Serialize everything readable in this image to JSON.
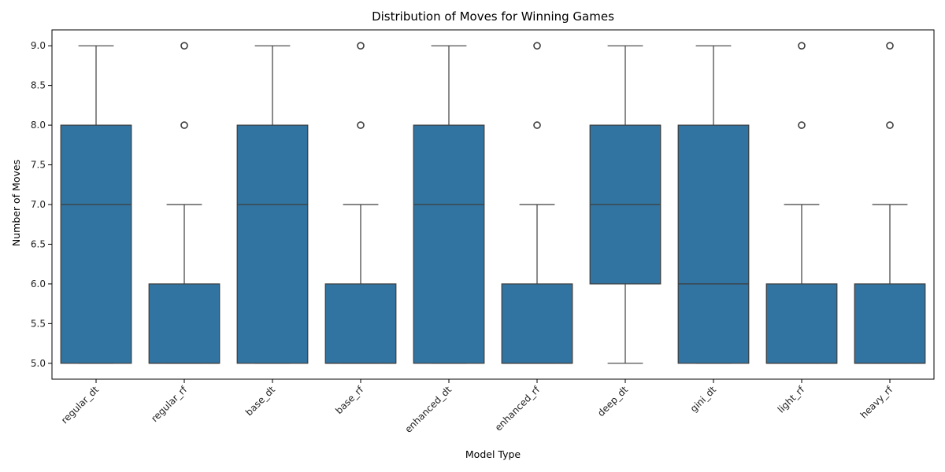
{
  "colors": {
    "box_fill": "#3274a1",
    "line": "#3d3d3d",
    "axis": "#000000",
    "background": "#ffffff"
  },
  "chart_data": {
    "type": "boxplot",
    "title": "Distribution of Moves for Winning Games",
    "xlabel": "Model Type",
    "ylabel": "Number of Moves",
    "ylim": [
      4.8,
      9.2
    ],
    "yticks": [
      5.0,
      5.5,
      6.0,
      6.5,
      7.0,
      7.5,
      8.0,
      8.5,
      9.0
    ],
    "ytick_labels": [
      "5.0",
      "5.5",
      "6.0",
      "6.5",
      "7.0",
      "7.5",
      "8.0",
      "8.5",
      "9.0"
    ],
    "grid": false,
    "categories": [
      "regular_dt",
      "regular_rf",
      "base_dt",
      "base_rf",
      "enhanced_dt",
      "enhanced_rf",
      "deep_dt",
      "gini_dt",
      "light_rf",
      "heavy_rf"
    ],
    "boxes": [
      {
        "category": "regular_dt",
        "whisker_low": 5,
        "q1": 5,
        "median": 7,
        "q3": 8,
        "whisker_high": 9,
        "outliers": []
      },
      {
        "category": "regular_rf",
        "whisker_low": 5,
        "q1": 5,
        "median": 5,
        "q3": 6,
        "whisker_high": 7,
        "outliers": [
          8,
          9
        ]
      },
      {
        "category": "base_dt",
        "whisker_low": 5,
        "q1": 5,
        "median": 7,
        "q3": 8,
        "whisker_high": 9,
        "outliers": []
      },
      {
        "category": "base_rf",
        "whisker_low": 5,
        "q1": 5,
        "median": 5,
        "q3": 6,
        "whisker_high": 7,
        "outliers": [
          8,
          9
        ]
      },
      {
        "category": "enhanced_dt",
        "whisker_low": 5,
        "q1": 5,
        "median": 7,
        "q3": 8,
        "whisker_high": 9,
        "outliers": []
      },
      {
        "category": "enhanced_rf",
        "whisker_low": 5,
        "q1": 5,
        "median": 5,
        "q3": 6,
        "whisker_high": 7,
        "outliers": [
          8,
          9
        ]
      },
      {
        "category": "deep_dt",
        "whisker_low": 5,
        "q1": 6,
        "median": 7,
        "q3": 8,
        "whisker_high": 9,
        "outliers": []
      },
      {
        "category": "gini_dt",
        "whisker_low": 5,
        "q1": 5,
        "median": 6,
        "q3": 8,
        "whisker_high": 9,
        "outliers": []
      },
      {
        "category": "light_rf",
        "whisker_low": 5,
        "q1": 5,
        "median": 5,
        "q3": 6,
        "whisker_high": 7,
        "outliers": [
          8,
          9
        ]
      },
      {
        "category": "heavy_rf",
        "whisker_low": 5,
        "q1": 5,
        "median": 5,
        "q3": 6,
        "whisker_high": 7,
        "outliers": [
          8,
          9
        ]
      }
    ]
  }
}
